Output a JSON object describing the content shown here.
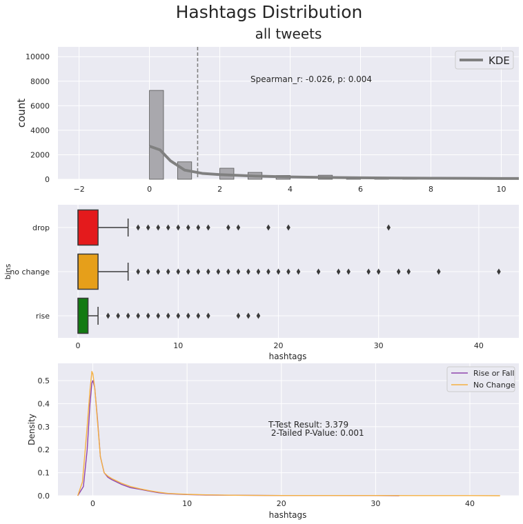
{
  "figure": {
    "suptitle": "Hashtags Distribution"
  },
  "chart_data": [
    {
      "type": "bar",
      "title": "all tweets",
      "ylabel": "count",
      "xlim": [
        -2.6,
        10.5
      ],
      "ylim": [
        0,
        10800
      ],
      "xticks": [
        "−2",
        "0",
        "2",
        "4",
        "6",
        "8",
        "10"
      ],
      "xtick_values": [
        -2,
        0,
        2,
        4,
        6,
        8,
        10
      ],
      "yticks": [
        "0",
        "2000",
        "4000",
        "6000",
        "8000",
        "10000"
      ],
      "ytick_values": [
        0,
        2000,
        4000,
        6000,
        8000,
        10000
      ],
      "grid": true,
      "legend": {
        "position": "top-right",
        "entries": [
          "KDE"
        ]
      },
      "bars": [
        {
          "x0": 0,
          "x1": 0.4,
          "count": 7250
        },
        {
          "x0": 0.8,
          "x1": 1.2,
          "count": 1420
        },
        {
          "x0": 2,
          "x1": 2.4,
          "count": 900
        },
        {
          "x0": 2.8,
          "x1": 3.2,
          "count": 560
        },
        {
          "x0": 3.6,
          "x1": 4.0,
          "count": 310
        },
        {
          "x0": 4.8,
          "x1": 5.2,
          "count": 330
        },
        {
          "x0": 5.6,
          "x1": 6.0,
          "count": 150
        },
        {
          "x0": 6.4,
          "x1": 6.8,
          "count": 60
        },
        {
          "x0": 7.2,
          "x1": 7.6,
          "count": 40
        },
        {
          "x0": 8.4,
          "x1": 8.8,
          "count": 30
        },
        {
          "x0": 9.2,
          "x1": 9.6,
          "count": 20
        }
      ],
      "kde": {
        "name": "KDE",
        "x": [
          0,
          0.3,
          0.6,
          1,
          1.5,
          2,
          3,
          4,
          5,
          6,
          7,
          8,
          9,
          10,
          10.5
        ],
        "y": [
          2700,
          2400,
          1500,
          750,
          480,
          380,
          260,
          190,
          150,
          120,
          100,
          85,
          75,
          65,
          60
        ]
      },
      "mean_line": 1.37,
      "annotation": "Spearman_r: -0.026, p: 0.004",
      "colors": {
        "bar": "#a9a8ad",
        "kde": "#808080"
      }
    },
    {
      "type": "box",
      "xlabel": "hashtags",
      "ylabel": "bins",
      "xlim": [
        -2,
        44
      ],
      "xticks": [
        "0",
        "10",
        "20",
        "30",
        "40"
      ],
      "xtick_values": [
        0,
        10,
        20,
        30,
        40
      ],
      "grid": true,
      "groups": [
        {
          "name": "drop",
          "color": "#e41a1c",
          "q1": 0,
          "median": 0,
          "q3": 2,
          "whisker_low": 0,
          "whisker_high": 5,
          "fliers": [
            6,
            7,
            8,
            9,
            10,
            11,
            12,
            13,
            15,
            16,
            19,
            21,
            31
          ]
        },
        {
          "name": "no change",
          "color": "#e69f1a",
          "q1": 0,
          "median": 0,
          "q3": 2,
          "whisker_low": 0,
          "whisker_high": 5,
          "fliers": [
            6,
            7,
            8,
            9,
            10,
            11,
            12,
            13,
            14,
            15,
            16,
            17,
            18,
            19,
            20,
            21,
            22,
            24,
            26,
            27,
            29,
            30,
            32,
            33,
            36,
            42
          ]
        },
        {
          "name": "rise",
          "color": "#127a12",
          "q1": 0,
          "median": 0,
          "q3": 1,
          "whisker_low": 0,
          "whisker_high": 2,
          "fliers": [
            3,
            4,
            5,
            6,
            7,
            8,
            9,
            10,
            11,
            12,
            13,
            16,
            17,
            18
          ]
        }
      ]
    },
    {
      "type": "line",
      "xlabel": "hashtags",
      "ylabel": "Density",
      "xlim": [
        -3.7,
        45.2
      ],
      "ylim": [
        0,
        0.575
      ],
      "xticks": [
        "0",
        "10",
        "20",
        "30",
        "40"
      ],
      "xtick_values": [
        0,
        10,
        20,
        30,
        40
      ],
      "yticks": [
        "0.0",
        "0.1",
        "0.2",
        "0.3",
        "0.4",
        "0.5"
      ],
      "ytick_values": [
        0,
        0.1,
        0.2,
        0.3,
        0.4,
        0.5
      ],
      "grid": true,
      "legend": {
        "position": "top-right"
      },
      "annotation": [
        "T-Test Result: 3.379",
        " 2-Tailed P-Value: 0.001"
      ],
      "series": [
        {
          "name": "Rise or Fall",
          "color": "#8e44ad",
          "x": [
            -1.6,
            -1,
            -0.6,
            -0.3,
            -0.1,
            0,
            0.2,
            0.5,
            0.8,
            1.2,
            1.6,
            2,
            3,
            4,
            5,
            6,
            7,
            8,
            10,
            12,
            15,
            20,
            25,
            30,
            32.5
          ],
          "y": [
            0,
            0.04,
            0.2,
            0.4,
            0.49,
            0.5,
            0.47,
            0.33,
            0.17,
            0.1,
            0.08,
            0.07,
            0.05,
            0.035,
            0.028,
            0.02,
            0.013,
            0.009,
            0.005,
            0.003,
            0.002,
            0.001,
            0.001,
            0.0005,
            0
          ]
        },
        {
          "name": "No Change",
          "color": "#f5b041",
          "x": [
            -1.6,
            -1.1,
            -0.6,
            -0.3,
            -0.1,
            0,
            0.2,
            0.5,
            0.8,
            1.2,
            1.6,
            2,
            3,
            4,
            5,
            6,
            7,
            8,
            10,
            12,
            15,
            20,
            25,
            30,
            35,
            40,
            43.2
          ],
          "y": [
            0,
            0.06,
            0.3,
            0.46,
            0.54,
            0.53,
            0.47,
            0.32,
            0.17,
            0.1,
            0.085,
            0.075,
            0.055,
            0.04,
            0.03,
            0.022,
            0.015,
            0.01,
            0.006,
            0.004,
            0.002,
            0.001,
            0.001,
            0.0008,
            0.0006,
            0.0005,
            0
          ]
        }
      ]
    }
  ]
}
